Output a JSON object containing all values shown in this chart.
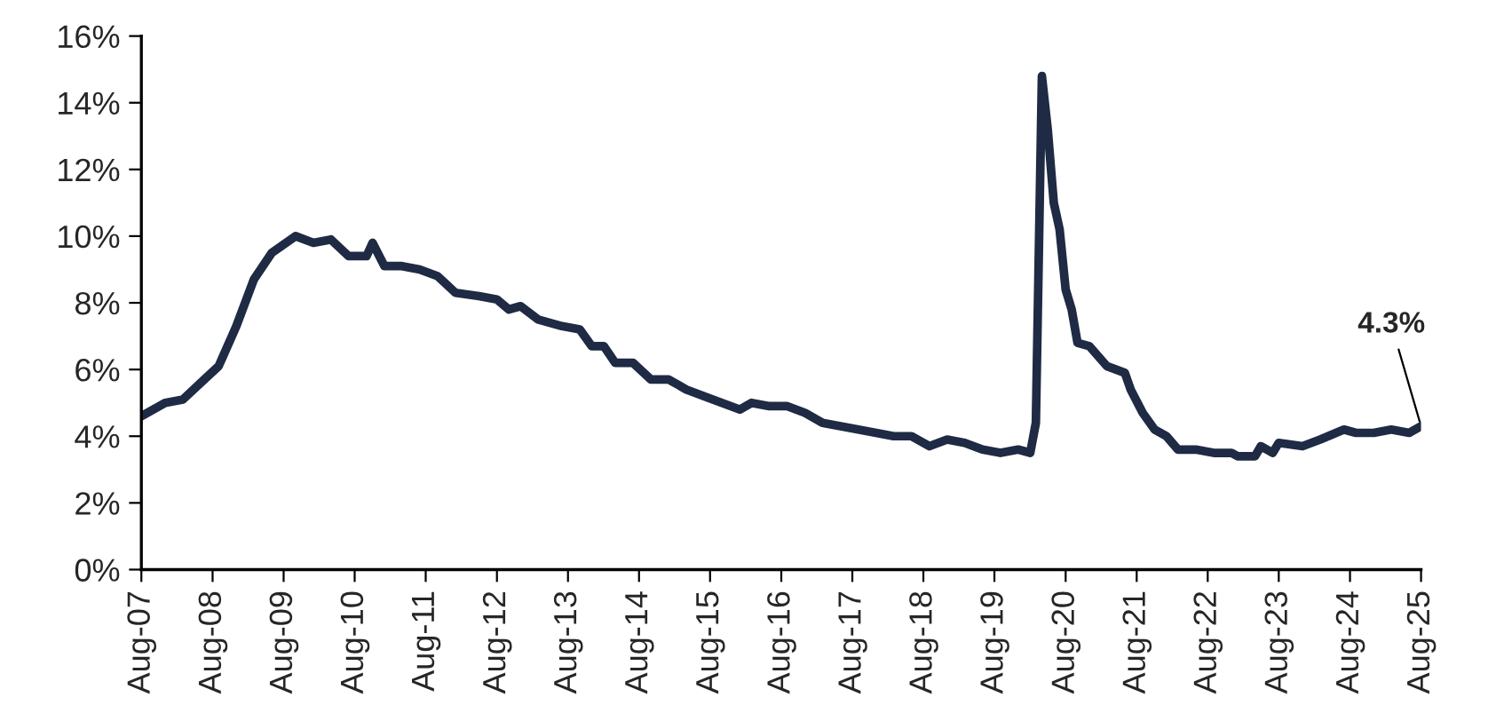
{
  "chart_data": {
    "type": "line",
    "x": [
      "2007-08",
      "2007-12",
      "2008-03",
      "2008-06",
      "2008-09",
      "2008-12",
      "2009-03",
      "2009-06",
      "2009-10",
      "2010-01",
      "2010-04",
      "2010-07",
      "2010-10",
      "2010-11",
      "2011-01",
      "2011-04",
      "2011-07",
      "2011-10",
      "2012-01",
      "2012-05",
      "2012-08",
      "2012-10",
      "2012-12",
      "2013-03",
      "2013-07",
      "2013-10",
      "2013-12",
      "2014-02",
      "2014-04",
      "2014-07",
      "2014-10",
      "2015-01",
      "2015-04",
      "2015-07",
      "2015-10",
      "2016-01",
      "2016-03",
      "2016-06",
      "2016-09",
      "2016-12",
      "2017-03",
      "2017-06",
      "2017-09",
      "2017-12",
      "2018-03",
      "2018-06",
      "2018-09",
      "2018-12",
      "2019-03",
      "2019-06",
      "2019-09",
      "2019-12",
      "2020-02",
      "2020-03",
      "2020-04",
      "2020-05",
      "2020-06",
      "2020-07",
      "2020-08",
      "2020-09",
      "2020-10",
      "2020-12",
      "2021-03",
      "2021-06",
      "2021-07",
      "2021-09",
      "2021-11",
      "2022-01",
      "2022-03",
      "2022-06",
      "2022-09",
      "2022-12",
      "2023-01",
      "2023-04",
      "2023-05",
      "2023-07",
      "2023-08",
      "2023-12",
      "2024-03",
      "2024-07",
      "2024-09",
      "2024-12",
      "2025-03",
      "2025-06",
      "2025-08"
    ],
    "series": [
      {
        "color": "#1f2a44",
        "values": [
          4.6,
          5.0,
          5.1,
          5.6,
          6.1,
          7.3,
          8.7,
          9.5,
          10.0,
          9.8,
          9.9,
          9.4,
          9.4,
          9.8,
          9.1,
          9.1,
          9.0,
          8.8,
          8.3,
          8.2,
          8.1,
          7.8,
          7.9,
          7.5,
          7.3,
          7.2,
          6.7,
          6.7,
          6.2,
          6.2,
          5.7,
          5.7,
          5.4,
          5.2,
          5.0,
          4.8,
          5.0,
          4.9,
          4.9,
          4.7,
          4.4,
          4.3,
          4.2,
          4.1,
          4.0,
          4.0,
          3.7,
          3.9,
          3.8,
          3.6,
          3.5,
          3.6,
          3.5,
          4.4,
          14.8,
          13.2,
          11.0,
          10.2,
          8.4,
          7.8,
          6.8,
          6.7,
          6.1,
          5.9,
          5.4,
          4.7,
          4.2,
          4.0,
          3.6,
          3.6,
          3.5,
          3.5,
          3.4,
          3.4,
          3.7,
          3.5,
          3.8,
          3.7,
          3.9,
          4.2,
          4.1,
          4.1,
          4.2,
          4.1,
          4.3
        ]
      }
    ],
    "xlim": [
      "2007-08",
      "2025-08"
    ],
    "xticks": [
      {
        "value": "2007-08",
        "label": "Aug-07"
      },
      {
        "value": "2008-08",
        "label": "Aug-08"
      },
      {
        "value": "2009-08",
        "label": "Aug-09"
      },
      {
        "value": "2010-08",
        "label": "Aug-10"
      },
      {
        "value": "2011-08",
        "label": "Aug-11"
      },
      {
        "value": "2012-08",
        "label": "Aug-12"
      },
      {
        "value": "2013-08",
        "label": "Aug-13"
      },
      {
        "value": "2014-08",
        "label": "Aug-14"
      },
      {
        "value": "2015-08",
        "label": "Aug-15"
      },
      {
        "value": "2016-08",
        "label": "Aug-16"
      },
      {
        "value": "2017-08",
        "label": "Aug-17"
      },
      {
        "value": "2018-08",
        "label": "Aug-18"
      },
      {
        "value": "2019-08",
        "label": "Aug-19"
      },
      {
        "value": "2020-08",
        "label": "Aug-20"
      },
      {
        "value": "2021-08",
        "label": "Aug-21"
      },
      {
        "value": "2022-08",
        "label": "Aug-22"
      },
      {
        "value": "2023-08",
        "label": "Aug-23"
      },
      {
        "value": "2024-08",
        "label": "Aug-24"
      },
      {
        "value": "2025-08",
        "label": "Aug-25"
      }
    ],
    "ylim": [
      0,
      16
    ],
    "yticks": [
      {
        "value": 0,
        "label": "0%"
      },
      {
        "value": 2,
        "label": "2%"
      },
      {
        "value": 4,
        "label": "4%"
      },
      {
        "value": 6,
        "label": "6%"
      },
      {
        "value": 8,
        "label": "8%"
      },
      {
        "value": 10,
        "label": "10%"
      },
      {
        "value": 12,
        "label": "12%"
      },
      {
        "value": 14,
        "label": "14%"
      },
      {
        "value": 16,
        "label": "16%"
      }
    ],
    "annotations": [
      {
        "text": "4.3%",
        "x": "2025-08",
        "y": 4.3
      }
    ],
    "grid": false,
    "marker": "none",
    "line_style": "solid"
  }
}
